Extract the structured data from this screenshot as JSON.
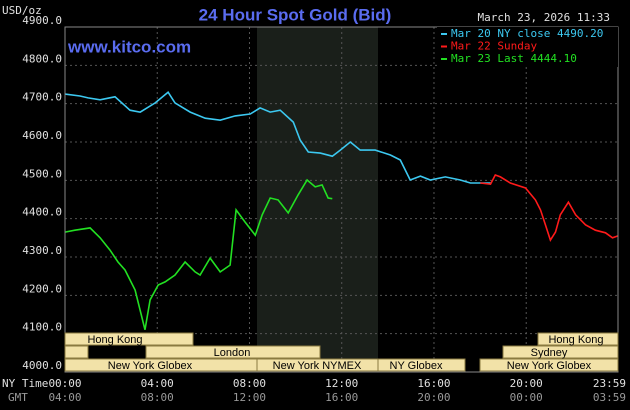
{
  "chart_data": {
    "type": "line",
    "title": "24 Hour Spot Gold (Bid)",
    "y_label": "USD/oz",
    "timestamp": "March 23, 2026 11:33",
    "source": "www.kitco.com",
    "x_label": "NY Time",
    "x2_label": "GMT",
    "xlim": [
      0,
      23.98
    ],
    "xticks": [
      {
        "value": 0,
        "label": "00:00"
      },
      {
        "value": 4,
        "label": "04:00"
      },
      {
        "value": 8,
        "label": "08:00"
      },
      {
        "value": 12,
        "label": "12:00"
      },
      {
        "value": 16,
        "label": "16:00"
      },
      {
        "value": 20,
        "label": "20:00"
      },
      {
        "value": 23.98,
        "label": "23:59"
      }
    ],
    "gmt_labels": [
      "04:00",
      "08:00",
      "12:00",
      "16:00",
      "20:00",
      "00:00",
      "03:59"
    ],
    "ylim": [
      4000,
      4900
    ],
    "yticks": [
      {
        "value": 4000,
        "label": "4000.0"
      },
      {
        "value": 4100,
        "label": "4100.0"
      },
      {
        "value": 4200,
        "label": "4200.0"
      },
      {
        "value": 4300,
        "label": "4300.0"
      },
      {
        "value": 4400,
        "label": "4400.0"
      },
      {
        "value": 4500,
        "label": "4500.0"
      },
      {
        "value": 4600,
        "label": "4600.0"
      },
      {
        "value": 4700,
        "label": "4700.0"
      },
      {
        "value": 4800,
        "label": "4800.0"
      },
      {
        "value": 4900,
        "label": "4900.0"
      }
    ],
    "grid": true,
    "series": [
      {
        "name": "Mar 20 NY close 4490.20",
        "color": "#3cc8f0",
        "x": [
          0,
          0.65,
          1.0,
          1.52,
          2.17,
          2.82,
          3.26,
          3.91,
          4.47,
          4.77,
          5.43,
          6.08,
          6.73,
          7.38,
          8.03,
          8.46,
          8.9,
          9.33,
          9.9,
          10.2,
          10.55,
          11.07,
          11.59,
          11.94,
          12.37,
          12.8,
          13.45,
          14.11,
          14.54,
          14.97,
          15.41,
          15.84,
          16.49,
          17.14,
          17.58,
          18.45
        ],
        "values": [
          4725,
          4720,
          4715,
          4710,
          4718,
          4683,
          4678,
          4702,
          4730,
          4702,
          4678,
          4662,
          4657,
          4668,
          4673,
          4689,
          4678,
          4683,
          4652,
          4605,
          4574,
          4571,
          4563,
          4579,
          4600,
          4579,
          4579,
          4566,
          4553,
          4501,
          4511,
          4501,
          4509,
          4501,
          4493,
          4493
        ]
      },
      {
        "name": "Mar 22 Sunday",
        "color": "#ff1a1a",
        "x": [
          18.01,
          18.45,
          18.66,
          18.88,
          19.31,
          19.97,
          20.4,
          20.62,
          20.83,
          21.05,
          21.27,
          21.48,
          21.83,
          22.14,
          22.57,
          23.0,
          23.44,
          23.74,
          23.98
        ],
        "values": [
          4493,
          4490,
          4514,
          4509,
          4493,
          4480,
          4449,
          4423,
          4384,
          4344,
          4365,
          4410,
          4443,
          4410,
          4384,
          4370,
          4363,
          4350,
          4355
        ]
      },
      {
        "name": "Mar 23 Last 4444.10",
        "color": "#22e022",
        "x": [
          0,
          0.43,
          1.09,
          1.52,
          1.95,
          2.3,
          2.6,
          3.04,
          3.47,
          3.69,
          4.04,
          4.34,
          4.77,
          5.21,
          5.64,
          5.86,
          6.29,
          6.73,
          7.16,
          7.42,
          7.81,
          8.25,
          8.55,
          8.9,
          9.24,
          9.68,
          10.11,
          10.5,
          10.85,
          11.15,
          11.41,
          11.59
        ],
        "values": [
          4365,
          4370,
          4376,
          4350,
          4318,
          4287,
          4266,
          4214,
          4110,
          4188,
          4227,
          4235,
          4253,
          4287,
          4261,
          4253,
          4297,
          4261,
          4279,
          4423,
          4391,
          4357,
          4410,
          4454,
          4449,
          4415,
          4462,
          4501,
          4483,
          4488,
          4454,
          4452
        ]
      }
    ],
    "sessions": [
      "Hong Kong",
      "London",
      "New York Globex",
      "New York NYMEX",
      "NY Globex",
      "Hong Kong",
      "Sydney",
      "New York Globex"
    ]
  }
}
